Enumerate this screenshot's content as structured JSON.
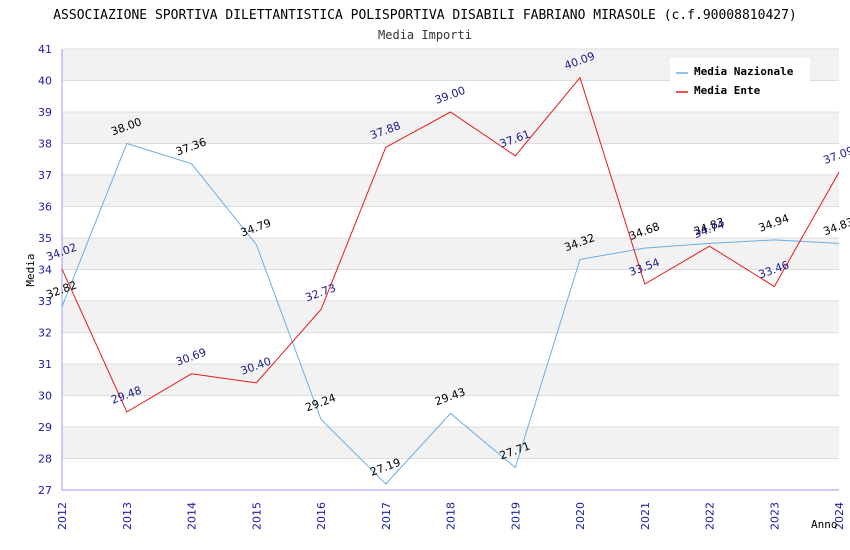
{
  "chart_data": {
    "type": "line",
    "title": "ASSOCIAZIONE SPORTIVA DILETTANTISTICA POLISPORTIVA DISABILI FABRIANO MIRASOLE (c.f.90008810427)",
    "subtitle": "Media Importi",
    "xlabel": "Anno",
    "ylabel": "Media",
    "ylim": [
      27,
      41
    ],
    "yticks": [
      "27",
      "28",
      "29",
      "30",
      "31",
      "32",
      "33",
      "34",
      "35",
      "36",
      "37",
      "38",
      "39",
      "40",
      "41"
    ],
    "categories": [
      "2012",
      "2013",
      "2014",
      "2015",
      "2016",
      "2017",
      "2018",
      "2019",
      "2020",
      "2021",
      "2022",
      "2023",
      "2024"
    ],
    "grid": true,
    "legend_position": "top-right",
    "series": [
      {
        "name": "Media Nazionale",
        "color": "#6aaee6",
        "label_color": "#000000",
        "values": [
          32.82,
          38.0,
          37.36,
          34.79,
          29.24,
          27.19,
          29.43,
          27.71,
          34.32,
          34.68,
          34.83,
          34.94,
          34.83
        ],
        "labels": [
          "32.82",
          "38.00",
          "37.36",
          "34.79",
          "29.24",
          "27.19",
          "29.43",
          "27.71",
          "34.32",
          "34.68",
          "34.83",
          "34.94",
          "34.83"
        ]
      },
      {
        "name": "Media Ente",
        "color": "#e41a1c",
        "label_color": "#1a1a8c",
        "values": [
          34.02,
          29.48,
          30.69,
          30.4,
          32.73,
          37.88,
          39.0,
          37.61,
          40.09,
          33.54,
          34.74,
          33.46,
          37.09
        ],
        "labels": [
          "34.02",
          "29.48",
          "30.69",
          "30.40",
          "32.73",
          "37.88",
          "39.00",
          "37.61",
          "40.09",
          "33.54",
          "34.74",
          "33.46",
          "37.09"
        ]
      }
    ]
  }
}
